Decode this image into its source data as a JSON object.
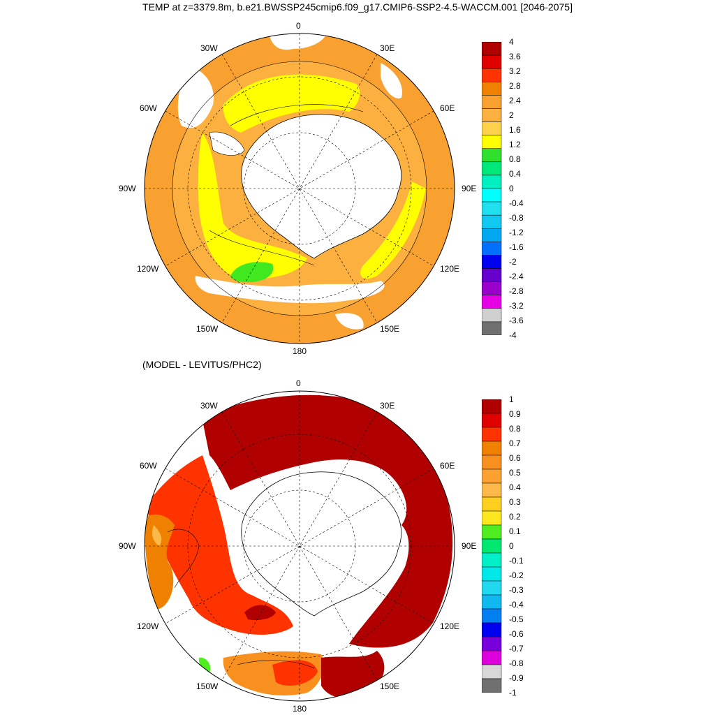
{
  "title": "TEMP at z=3379.8m, b.e21.BWSSP245cmip6.f09_g17.CMIP6-SSP2-4.5-WACCM.001 [2046-2075]",
  "subtitle": "(MODEL - LEVITUS/PHC2)",
  "colors": {
    "land": "#ffffff",
    "coast": "#000000",
    "grid": "#000000"
  },
  "top_map": {
    "lon_labels": [
      "0",
      "30E",
      "60E",
      "90E",
      "120E",
      "150E",
      "180",
      "150W",
      "120W",
      "90W",
      "60W",
      "30W"
    ],
    "colorbar": {
      "labels": [
        "4",
        "3.6",
        "3.2",
        "2.8",
        "2.4",
        "2",
        "1.6",
        "1.2",
        "0.8",
        "0.4",
        "0",
        "-0.4",
        "-0.8",
        "-1.2",
        "-1.6",
        "-2",
        "-2.4",
        "-2.8",
        "-3.2",
        "-3.6",
        "-4"
      ],
      "colors": [
        "#b00000",
        "#e00000",
        "#ff3300",
        "#f08000",
        "#f8a030",
        "#fcb040",
        "#fdd24a",
        "#ffff00",
        "#2fe02f",
        "#00e87a",
        "#00f0c0",
        "#00ffff",
        "#20e0f0",
        "#10c8f0",
        "#00a8f0",
        "#0070ff",
        "#0000f0",
        "#6600cc",
        "#9900cc",
        "#e600e6",
        "#d0d0d0",
        "#707070"
      ]
    }
  },
  "bottom_map": {
    "lon_labels": [
      "0",
      "30E",
      "60E",
      "90E",
      "120E",
      "150E",
      "180",
      "150W",
      "120W",
      "90W",
      "60W",
      "30W"
    ],
    "colorbar": {
      "labels": [
        "1",
        "0.9",
        "0.8",
        "0.7",
        "0.6",
        "0.5",
        "0.4",
        "0.3",
        "0.2",
        "0.1",
        "0",
        "-0.1",
        "-0.2",
        "-0.3",
        "-0.4",
        "-0.5",
        "-0.6",
        "-0.7",
        "-0.8",
        "-0.9",
        "-1"
      ],
      "colors": [
        "#b00000",
        "#e00000",
        "#ff3300",
        "#f08000",
        "#f89020",
        "#fca030",
        "#fcb848",
        "#fdd020",
        "#ffe820",
        "#50ee20",
        "#00e870",
        "#00f0c8",
        "#00e8e8",
        "#20d8f0",
        "#10b8f0",
        "#0080f0",
        "#0000f0",
        "#7700dd",
        "#dd00dd",
        "#d8d8d8",
        "#707070"
      ]
    }
  }
}
